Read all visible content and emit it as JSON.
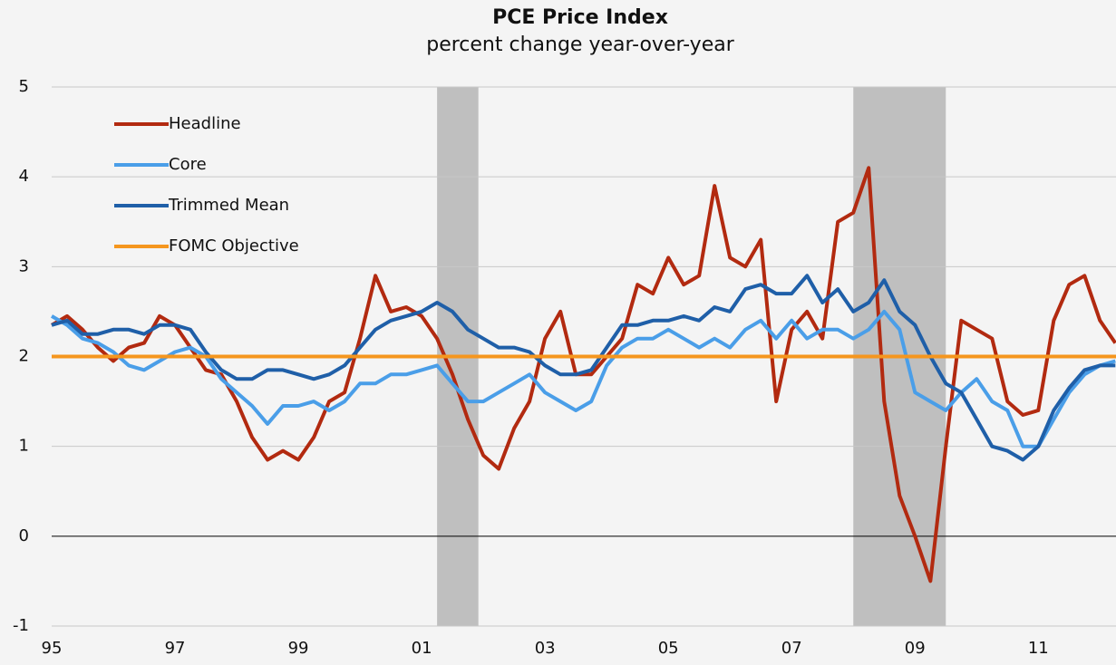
{
  "chart_data": {
    "type": "line",
    "title": "PCE Price Index",
    "subtitle": "percent change year-over-year",
    "x": [
      1995,
      1995.25,
      1995.5,
      1995.75,
      1996,
      1996.25,
      1996.5,
      1996.75,
      1997,
      1997.25,
      1997.5,
      1997.75,
      1998,
      1998.25,
      1998.5,
      1998.75,
      1999,
      1999.25,
      1999.5,
      1999.75,
      2000,
      2000.25,
      2000.5,
      2000.75,
      2001,
      2001.25,
      2001.5,
      2001.75,
      2002,
      2002.25,
      2002.5,
      2002.75,
      2003,
      2003.25,
      2003.5,
      2003.75,
      2004,
      2004.25,
      2004.5,
      2004.75,
      2005,
      2005.25,
      2005.5,
      2005.75,
      2006,
      2006.25,
      2006.5,
      2006.75,
      2007,
      2007.25,
      2007.5,
      2007.75,
      2008,
      2008.25,
      2008.5,
      2008.75,
      2009,
      2009.25,
      2009.5,
      2009.75,
      2010,
      2010.25,
      2010.5,
      2010.75,
      2011,
      2011.25,
      2011.5,
      2011.75,
      2012,
      2012.25
    ],
    "series": [
      {
        "name": "Headline",
        "color": "#b22a10",
        "values": [
          2.35,
          2.45,
          2.3,
          2.1,
          1.95,
          2.1,
          2.15,
          2.45,
          2.35,
          2.1,
          1.85,
          1.8,
          1.5,
          1.1,
          0.85,
          0.95,
          0.85,
          1.1,
          1.5,
          1.6,
          2.2,
          2.9,
          2.5,
          2.55,
          2.45,
          2.2,
          1.8,
          1.3,
          0.9,
          0.75,
          1.2,
          1.5,
          2.2,
          2.5,
          1.8,
          1.8,
          2.0,
          2.2,
          2.8,
          2.7,
          3.1,
          2.8,
          2.9,
          3.9,
          3.1,
          3.0,
          3.3,
          1.5,
          2.3,
          2.5,
          2.2,
          3.5,
          3.6,
          4.1,
          1.5,
          0.45,
          0.0,
          -0.5,
          1.0,
          2.4,
          2.3,
          2.2,
          1.5,
          1.35,
          1.4,
          2.4,
          2.8,
          2.9,
          2.4,
          2.15
        ]
      },
      {
        "name": "Core",
        "color": "#4a9ee8",
        "values": [
          2.45,
          2.35,
          2.2,
          2.15,
          2.05,
          1.9,
          1.85,
          1.95,
          2.05,
          2.1,
          2.0,
          1.75,
          1.6,
          1.45,
          1.25,
          1.45,
          1.45,
          1.5,
          1.4,
          1.5,
          1.7,
          1.7,
          1.8,
          1.8,
          1.85,
          1.9,
          1.7,
          1.5,
          1.5,
          1.6,
          1.7,
          1.8,
          1.6,
          1.5,
          1.4,
          1.5,
          1.9,
          2.1,
          2.2,
          2.2,
          2.3,
          2.2,
          2.1,
          2.2,
          2.1,
          2.3,
          2.4,
          2.2,
          2.4,
          2.2,
          2.3,
          2.3,
          2.2,
          2.3,
          2.5,
          2.3,
          1.6,
          1.5,
          1.4,
          1.6,
          1.75,
          1.5,
          1.4,
          1.0,
          1.0,
          1.3,
          1.6,
          1.8,
          1.9,
          1.95
        ]
      },
      {
        "name": "Trimmed Mean",
        "color": "#1f5fa8",
        "values": [
          2.35,
          2.4,
          2.25,
          2.25,
          2.3,
          2.3,
          2.25,
          2.35,
          2.35,
          2.3,
          2.05,
          1.85,
          1.75,
          1.75,
          1.85,
          1.85,
          1.8,
          1.75,
          1.8,
          1.9,
          2.1,
          2.3,
          2.4,
          2.45,
          2.5,
          2.6,
          2.5,
          2.3,
          2.2,
          2.1,
          2.1,
          2.05,
          1.9,
          1.8,
          1.8,
          1.85,
          2.1,
          2.35,
          2.35,
          2.4,
          2.4,
          2.45,
          2.4,
          2.55,
          2.5,
          2.75,
          2.8,
          2.7,
          2.7,
          2.9,
          2.6,
          2.75,
          2.5,
          2.6,
          2.85,
          2.5,
          2.35,
          2.0,
          1.7,
          1.6,
          1.3,
          1.0,
          0.95,
          0.85,
          1.0,
          1.4,
          1.65,
          1.85,
          1.9,
          1.9
        ]
      }
    ],
    "objective": {
      "name": "FOMC Objective",
      "color": "#f5961e",
      "value": 2
    },
    "recessions": [
      {
        "start": 2001.25,
        "end": 2001.92
      },
      {
        "start": 2008.0,
        "end": 2009.5
      }
    ],
    "xlim": [
      1995,
      2012.26
    ],
    "xticks": [
      {
        "value": 1995,
        "label": "95"
      },
      {
        "value": 1997,
        "label": "97"
      },
      {
        "value": 1999,
        "label": "99"
      },
      {
        "value": 2001,
        "label": "01"
      },
      {
        "value": 2003,
        "label": "03"
      },
      {
        "value": 2005,
        "label": "05"
      },
      {
        "value": 2007,
        "label": "07"
      },
      {
        "value": 2009,
        "label": "09"
      },
      {
        "value": 2011,
        "label": "11"
      }
    ],
    "ylim": [
      -1,
      5
    ],
    "yticks": [
      -1,
      0,
      1,
      2,
      3,
      4,
      5
    ],
    "grid": true
  }
}
